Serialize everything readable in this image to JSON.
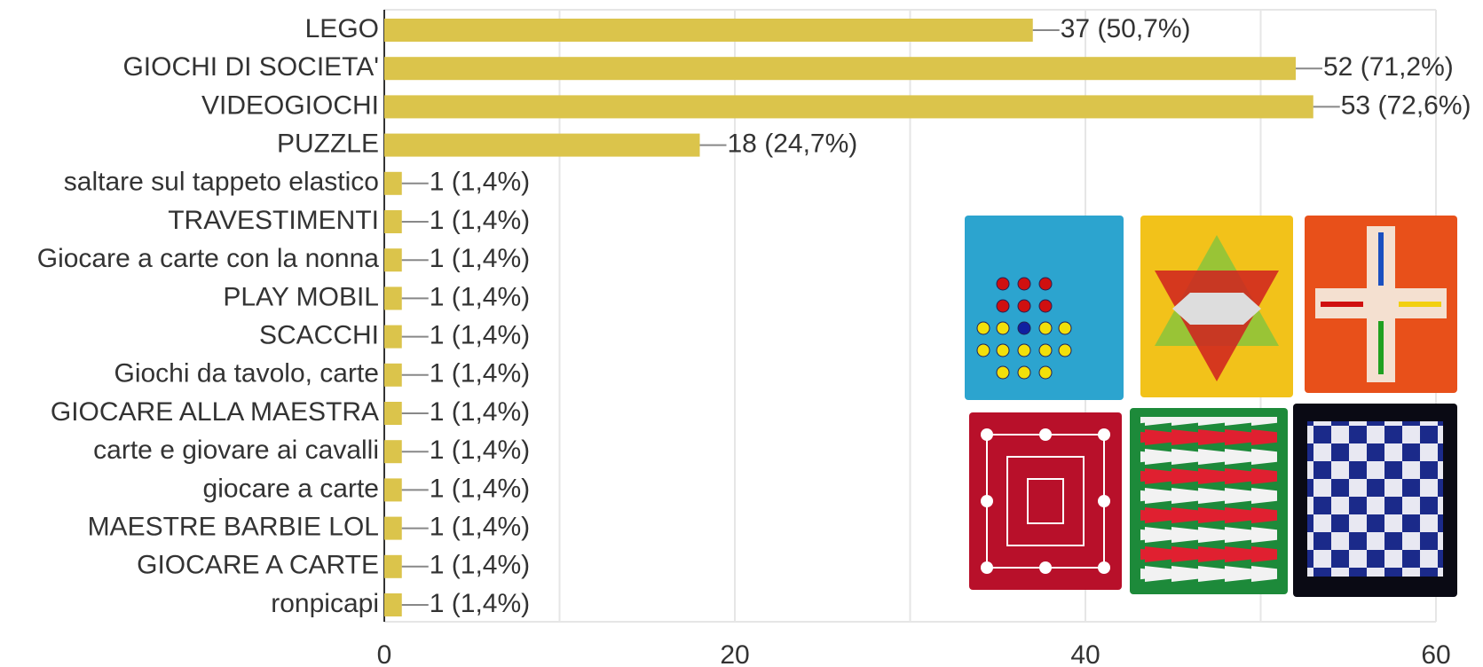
{
  "chart_data": {
    "type": "bar",
    "orientation": "horizontal",
    "categories": [
      "LEGO",
      "GIOCHI DI SOCIETA'",
      "VIDEOGIOCHI",
      "PUZZLE",
      "saltare sul tappeto elastico",
      "TRAVESTIMENTI",
      "Giocare a carte con la nonna",
      "PLAY MOBIL",
      "SCACCHI ",
      "Giochi da tavolo, carte",
      "GIOCARE ALLA MAESTRA",
      "carte e giovare ai cavalli",
      "giocare a carte",
      "MAESTRE BARBIE LOL",
      "GIOCARE A CARTE",
      "ronpicapi"
    ],
    "values": [
      37,
      52,
      53,
      18,
      1,
      1,
      1,
      1,
      1,
      1,
      1,
      1,
      1,
      1,
      1,
      1
    ],
    "value_labels": [
      "37 (50,7%)",
      "52 (71,2%)",
      "53 (72,6%)",
      "18 (24,7%)",
      "1 (1,4%)",
      "1 (1,4%)",
      "1 (1,4%)",
      "1 (1,4%)",
      "1 (1,4%)",
      "1 (1,4%)",
      "1 (1,4%)",
      "1 (1,4%)",
      "1 (1,4%)",
      "1 (1,4%)",
      "1 (1,4%)",
      "1 (1,4%)"
    ],
    "color": "#dbc44b",
    "xlim": [
      0,
      60
    ],
    "xticks": [
      0,
      20,
      40,
      60
    ],
    "minor_xticks": [
      10,
      30,
      50
    ],
    "grid": true
  }
}
